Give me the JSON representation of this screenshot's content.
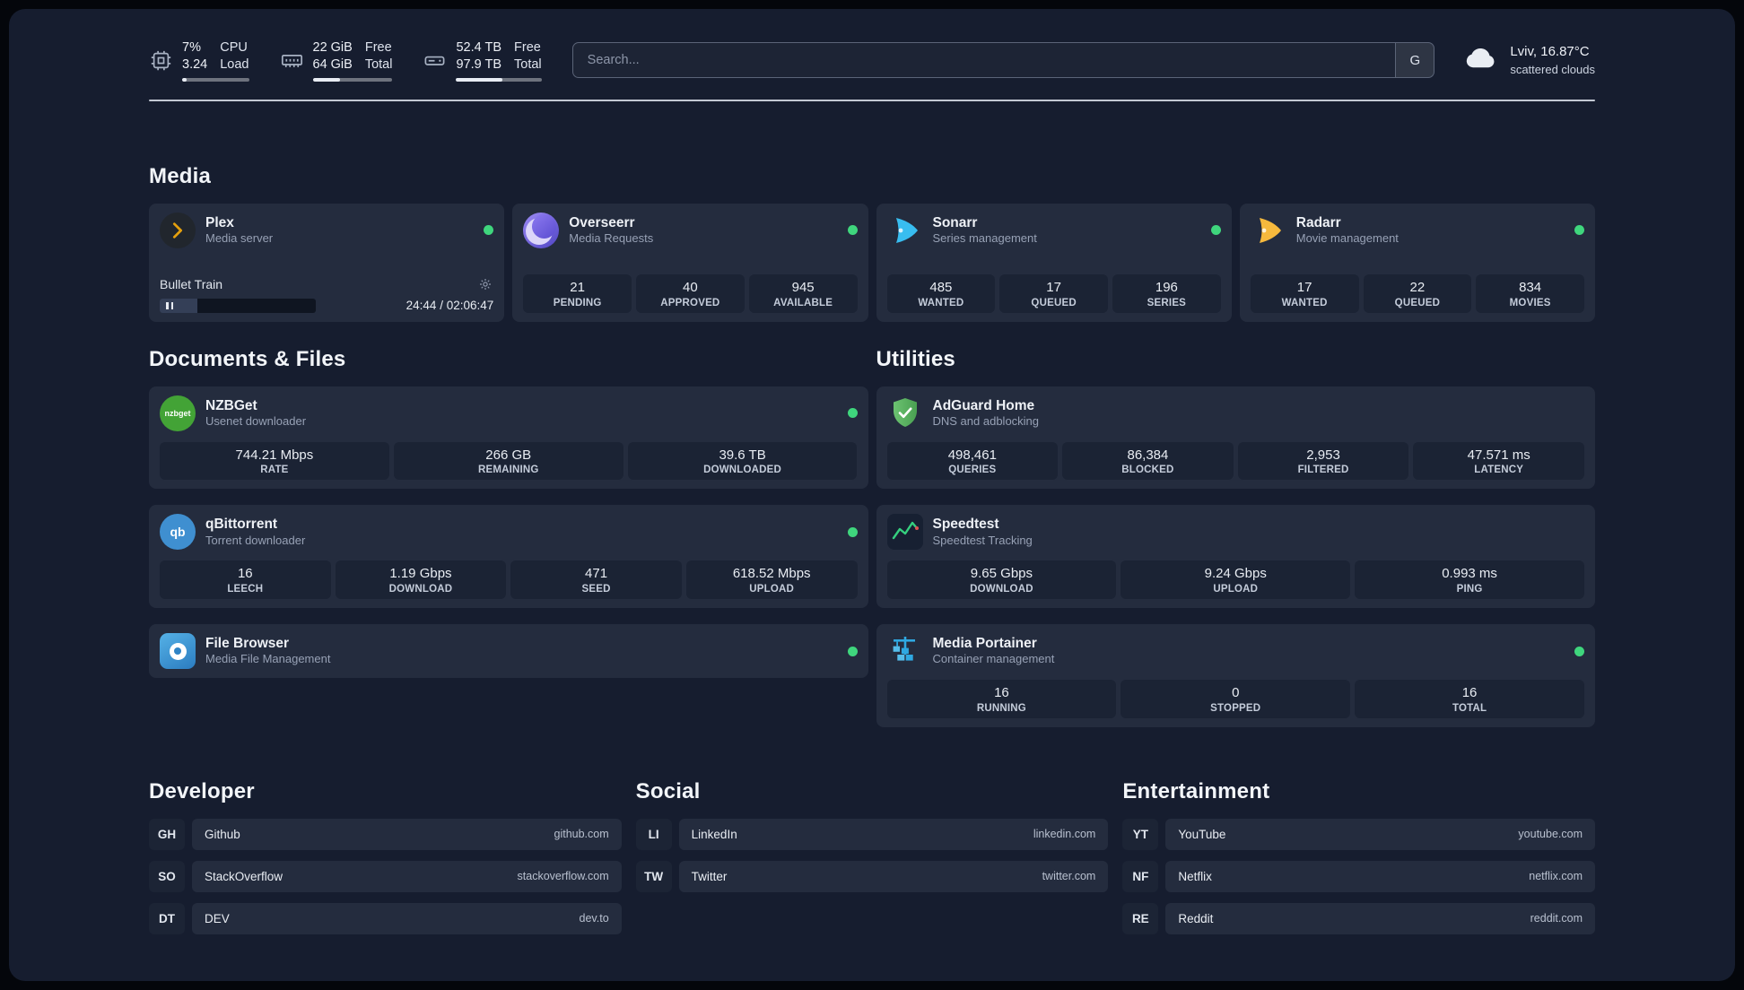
{
  "topbar": {
    "cpu": {
      "value_top": "7%",
      "value_bottom": "3.24",
      "label_top": "CPU",
      "label_bottom": "Load",
      "progress": 7
    },
    "ram": {
      "value_top": "22 GiB",
      "value_bottom": "64 GiB",
      "label_top": "Free",
      "label_bottom": "Total",
      "progress": 34
    },
    "disk": {
      "value_top": "52.4 TB",
      "value_bottom": "97.9 TB",
      "label_top": "Free",
      "label_bottom": "Total",
      "progress": 54
    },
    "search": {
      "placeholder": "Search...",
      "provider_button": "G"
    },
    "weather": {
      "location": "Lviv, 16.87°C",
      "condition": "scattered clouds"
    }
  },
  "media": {
    "title": "Media",
    "cards": [
      {
        "name": "Plex",
        "subtitle": "Media server",
        "icon": "plex-icon",
        "online": true,
        "player": {
          "track": "Bullet Train",
          "time": "24:44 / 02:06:47"
        }
      },
      {
        "name": "Overseerr",
        "subtitle": "Media Requests",
        "icon": "overseerr-icon",
        "online": true,
        "stats": [
          {
            "value": "21",
            "label": "PENDING"
          },
          {
            "value": "40",
            "label": "APPROVED"
          },
          {
            "value": "945",
            "label": "AVAILABLE"
          }
        ]
      },
      {
        "name": "Sonarr",
        "subtitle": "Series management",
        "icon": "sonarr-icon",
        "online": true,
        "stats": [
          {
            "value": "485",
            "label": "WANTED"
          },
          {
            "value": "17",
            "label": "QUEUED"
          },
          {
            "value": "196",
            "label": "SERIES"
          }
        ]
      },
      {
        "name": "Radarr",
        "subtitle": "Movie management",
        "icon": "radarr-icon",
        "online": true,
        "stats": [
          {
            "value": "17",
            "label": "WANTED"
          },
          {
            "value": "22",
            "label": "QUEUED"
          },
          {
            "value": "834",
            "label": "MOVIES"
          }
        ]
      }
    ]
  },
  "documents": {
    "title": "Documents & Files",
    "cards": [
      {
        "name": "NZBGet",
        "subtitle": "Usenet downloader",
        "icon": "nzbget-icon",
        "online": true,
        "stats": [
          {
            "value": "744.21 Mbps",
            "label": "RATE"
          },
          {
            "value": "266 GB",
            "label": "REMAINING"
          },
          {
            "value": "39.6 TB",
            "label": "DOWNLOADED"
          }
        ]
      },
      {
        "name": "qBittorrent",
        "subtitle": "Torrent downloader",
        "icon": "qbittorrent-icon",
        "online": true,
        "stats": [
          {
            "value": "16",
            "label": "LEECH"
          },
          {
            "value": "1.19 Gbps",
            "label": "DOWNLOAD"
          },
          {
            "value": "471",
            "label": "SEED"
          },
          {
            "value": "618.52 Mbps",
            "label": "UPLOAD"
          }
        ]
      },
      {
        "name": "File Browser",
        "subtitle": "Media File Management",
        "icon": "filebrowser-icon",
        "online": true,
        "stats": []
      }
    ]
  },
  "utilities": {
    "title": "Utilities",
    "cards": [
      {
        "name": "AdGuard Home",
        "subtitle": "DNS and adblocking",
        "icon": "adguard-icon",
        "online": false,
        "stats": [
          {
            "value": "498,461",
            "label": "QUERIES"
          },
          {
            "value": "86,384",
            "label": "BLOCKED"
          },
          {
            "value": "2,953",
            "label": "FILTERED"
          },
          {
            "value": "47.571 ms",
            "label": "LATENCY"
          }
        ]
      },
      {
        "name": "Speedtest",
        "subtitle": "Speedtest Tracking",
        "icon": "speedtest-icon",
        "online": false,
        "stats": [
          {
            "value": "9.65 Gbps",
            "label": "DOWNLOAD"
          },
          {
            "value": "9.24 Gbps",
            "label": "UPLOAD"
          },
          {
            "value": "0.993 ms",
            "label": "PING"
          }
        ]
      },
      {
        "name": "Media Portainer",
        "subtitle": "Container management",
        "icon": "portainer-icon",
        "online": true,
        "stats": [
          {
            "value": "16",
            "label": "RUNNING"
          },
          {
            "value": "0",
            "label": "STOPPED"
          },
          {
            "value": "16",
            "label": "TOTAL"
          }
        ]
      }
    ]
  },
  "bookmarks": {
    "groups": [
      {
        "title": "Developer",
        "items": [
          {
            "abbr": "GH",
            "name": "Github",
            "domain": "github.com"
          },
          {
            "abbr": "SO",
            "name": "StackOverflow",
            "domain": "stackoverflow.com"
          },
          {
            "abbr": "DT",
            "name": "DEV",
            "domain": "dev.to"
          }
        ]
      },
      {
        "title": "Social",
        "items": [
          {
            "abbr": "LI",
            "name": "LinkedIn",
            "domain": "linkedin.com"
          },
          {
            "abbr": "TW",
            "name": "Twitter",
            "domain": "twitter.com"
          }
        ]
      },
      {
        "title": "Entertainment",
        "items": [
          {
            "abbr": "YT",
            "name": "YouTube",
            "domain": "youtube.com"
          },
          {
            "abbr": "NF",
            "name": "Netflix",
            "domain": "netflix.com"
          },
          {
            "abbr": "RE",
            "name": "Reddit",
            "domain": "reddit.com"
          }
        ]
      }
    ]
  },
  "icons": {
    "nzbget_text": "nzbget",
    "qbittorrent_text": "qb"
  },
  "colors": {
    "status_online": "#3fd67d",
    "plex_amber": "#e5a00d",
    "sonarr_blue": "#38bdf0",
    "radarr_amber": "#f6b93d",
    "adguard_green": "#57b85c",
    "portainer_blue": "#2fa8e1",
    "speedtest_green": "#35d07f"
  }
}
